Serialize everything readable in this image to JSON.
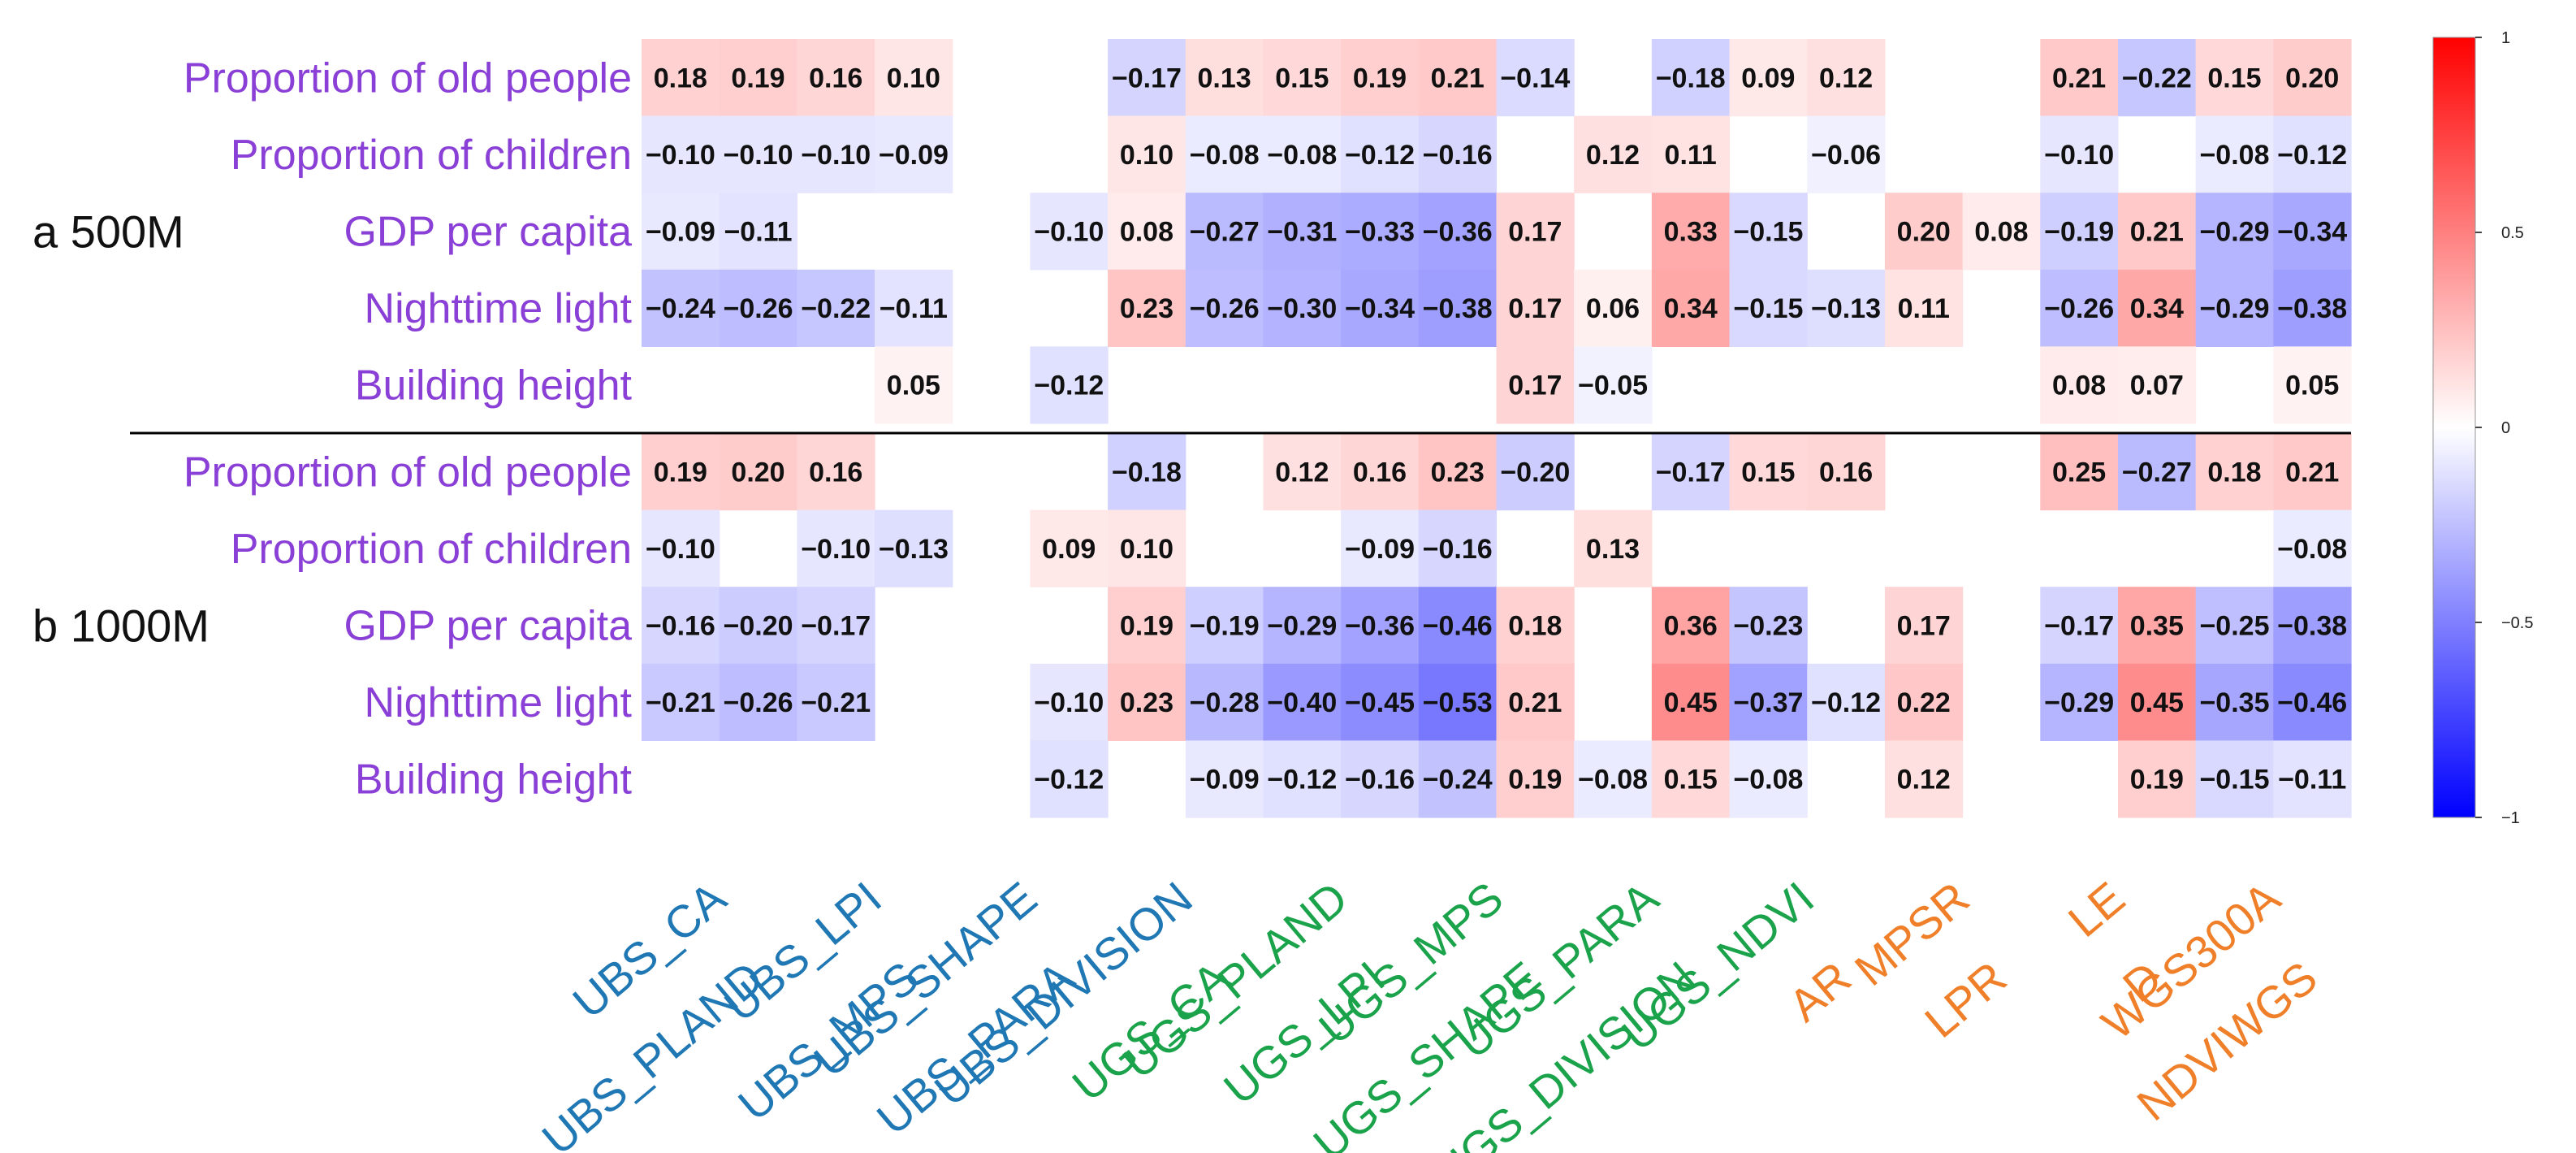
{
  "chart_data": {
    "type": "heatmap",
    "columns": [
      {
        "label": "UBS_CA",
        "group": "UBS"
      },
      {
        "label": "UBS_PLAND",
        "group": "UBS"
      },
      {
        "label": "UBS_LPI",
        "group": "UBS"
      },
      {
        "label": "UBS_MPS",
        "group": "UBS"
      },
      {
        "label": "UBS_SHAPE",
        "group": "UBS"
      },
      {
        "label": "UBS_PARA",
        "group": "UBS"
      },
      {
        "label": "UBS_DIVISION",
        "group": "UBS"
      },
      {
        "label": "UGS_CA",
        "group": "UGS"
      },
      {
        "label": "UGS_PLAND",
        "group": "UGS"
      },
      {
        "label": "UGS_LPI",
        "group": "UGS"
      },
      {
        "label": "UGS_MPS",
        "group": "UGS"
      },
      {
        "label": "UGS_SHAPE",
        "group": "UGS"
      },
      {
        "label": "UGS_PARA",
        "group": "UGS"
      },
      {
        "label": "UGS_DIVISION",
        "group": "UGS"
      },
      {
        "label": "UGS_NDVI",
        "group": "UGS"
      },
      {
        "label": "AR",
        "group": "OTHER"
      },
      {
        "label": "MPSR",
        "group": "OTHER"
      },
      {
        "label": "LPR",
        "group": "OTHER"
      },
      {
        "label": "LE",
        "group": "OTHER"
      },
      {
        "label": "D",
        "group": "OTHER"
      },
      {
        "label": "WGS300A",
        "group": "OTHER"
      },
      {
        "label": "NDVIWGS",
        "group": "OTHER"
      }
    ],
    "group_colors": {
      "UBS": "#1f77b4",
      "UGS": "#1aa34a",
      "OTHER": "#f07f2a"
    },
    "panels": [
      {
        "label": "a 500M",
        "rows": [
          {
            "label": "Proportion of old people",
            "values": [
              0.18,
              0.19,
              0.16,
              0.1,
              null,
              null,
              -0.17,
              0.13,
              0.15,
              0.19,
              0.21,
              -0.14,
              null,
              -0.18,
              0.09,
              0.12,
              null,
              null,
              0.21,
              -0.22,
              0.15,
              0.2
            ]
          },
          {
            "label": "Proportion of children",
            "values": [
              -0.1,
              -0.1,
              -0.1,
              -0.09,
              null,
              null,
              0.1,
              -0.08,
              -0.08,
              -0.12,
              -0.16,
              null,
              0.12,
              0.11,
              null,
              -0.06,
              null,
              null,
              -0.1,
              null,
              -0.08,
              -0.12
            ]
          },
          {
            "label": "GDP per capita",
            "values": [
              -0.09,
              -0.11,
              null,
              null,
              null,
              -0.1,
              0.08,
              -0.27,
              -0.31,
              -0.33,
              -0.36,
              0.17,
              null,
              0.33,
              -0.15,
              null,
              0.2,
              0.08,
              -0.19,
              0.21,
              -0.29,
              -0.34
            ]
          },
          {
            "label": "Nighttime light",
            "values": [
              -0.24,
              -0.26,
              -0.22,
              -0.11,
              null,
              null,
              0.23,
              -0.26,
              -0.3,
              -0.34,
              -0.38,
              0.17,
              0.06,
              0.34,
              -0.15,
              -0.13,
              0.11,
              null,
              -0.26,
              0.34,
              -0.29,
              -0.38
            ]
          },
          {
            "label": "Building height",
            "values": [
              null,
              null,
              null,
              0.05,
              null,
              -0.12,
              null,
              null,
              null,
              null,
              null,
              0.17,
              -0.05,
              null,
              null,
              null,
              null,
              null,
              0.08,
              0.07,
              null,
              0.05
            ]
          }
        ]
      },
      {
        "label": "b 1000M",
        "rows": [
          {
            "label": "Proportion of old people",
            "values": [
              0.19,
              0.2,
              0.16,
              null,
              null,
              null,
              -0.18,
              null,
              0.12,
              0.16,
              0.23,
              -0.2,
              null,
              -0.17,
              0.15,
              0.16,
              null,
              null,
              0.25,
              -0.27,
              0.18,
              0.21
            ]
          },
          {
            "label": "Proportion of children",
            "values": [
              -0.1,
              null,
              -0.1,
              -0.13,
              null,
              0.09,
              0.1,
              null,
              null,
              -0.09,
              -0.16,
              null,
              0.13,
              null,
              null,
              null,
              null,
              null,
              null,
              null,
              null,
              -0.08
            ]
          },
          {
            "label": "GDP per capita",
            "values": [
              -0.16,
              -0.2,
              -0.17,
              null,
              null,
              null,
              0.19,
              -0.19,
              -0.29,
              -0.36,
              -0.46,
              0.18,
              null,
              0.36,
              -0.23,
              null,
              0.17,
              null,
              -0.17,
              0.35,
              -0.25,
              -0.38
            ]
          },
          {
            "label": "Nighttime light",
            "values": [
              -0.21,
              -0.26,
              -0.21,
              null,
              null,
              -0.1,
              0.23,
              -0.28,
              -0.4,
              -0.45,
              -0.53,
              0.21,
              null,
              0.45,
              -0.37,
              -0.12,
              0.22,
              null,
              -0.29,
              0.45,
              -0.35,
              -0.46
            ]
          },
          {
            "label": "Building height",
            "values": [
              null,
              null,
              null,
              null,
              null,
              -0.12,
              null,
              -0.09,
              -0.12,
              -0.16,
              -0.24,
              0.19,
              -0.08,
              0.15,
              -0.08,
              null,
              0.12,
              null,
              null,
              0.19,
              -0.15,
              -0.11
            ]
          }
        ]
      }
    ],
    "colorbar": {
      "range": [
        -1,
        1
      ],
      "ticks": [
        {
          "value": 1,
          "label": "1"
        },
        {
          "value": 0.5,
          "label": "0.5"
        },
        {
          "value": 0,
          "label": "0"
        },
        {
          "value": -0.5,
          "label": "−0.5"
        },
        {
          "value": -1,
          "label": "−1"
        }
      ],
      "low_color": "#0000ff",
      "mid_color": "#ffffff",
      "high_color": "#ff0000"
    }
  }
}
